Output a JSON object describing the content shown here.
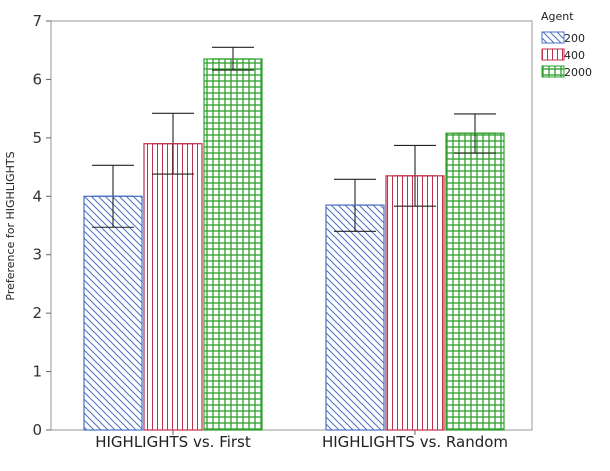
{
  "chart_data": {
    "type": "bar",
    "title": "",
    "xlabel": "",
    "ylabel": "Preference for HIGHLIGHTS",
    "ylim": [
      0,
      7
    ],
    "yticks": [
      0,
      1,
      2,
      3,
      4,
      5,
      6,
      7
    ],
    "grid": false,
    "legend": {
      "title": "Agent",
      "placement": "top-right"
    },
    "categories": [
      "HIGHLIGHTS vs. First",
      "HIGHLIGHTS vs. Random"
    ],
    "series": [
      {
        "name": "200",
        "values": [
          4.0,
          3.85
        ],
        "error_low": [
          3.47,
          3.4
        ],
        "error_high": [
          4.53,
          4.29
        ],
        "color": "#4a6fc4",
        "pattern": "diagonal-hatch"
      },
      {
        "name": "400",
        "values": [
          4.9,
          4.35
        ],
        "error_low": [
          4.38,
          3.83
        ],
        "error_high": [
          5.42,
          4.87
        ],
        "color": "#c0304a",
        "pattern": "vertical-hatch"
      },
      {
        "name": "2000",
        "values": [
          6.35,
          5.08
        ],
        "error_low": [
          6.16,
          4.74
        ],
        "error_high": [
          6.55,
          5.41
        ],
        "color": "#2ea02e",
        "pattern": "grid-hatch"
      }
    ]
  }
}
